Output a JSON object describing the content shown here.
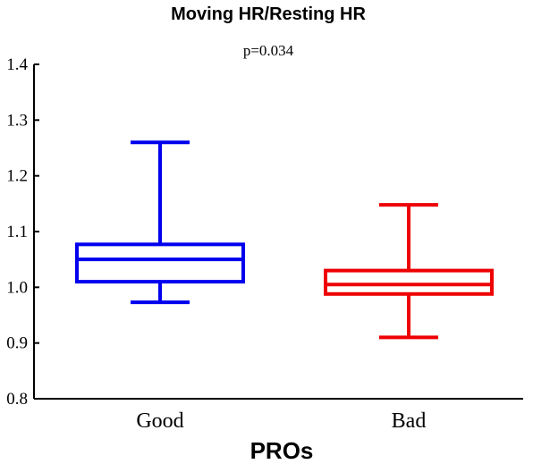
{
  "chart_data": {
    "type": "box",
    "title": "Moving HR/Resting HR",
    "subtitle": "p=0.034",
    "xlabel": "PROs",
    "ylabel": "",
    "ylim": [
      0.8,
      1.4
    ],
    "yticks": [
      "0.8",
      "0.9",
      "1.0",
      "1.1",
      "1.2",
      "1.3",
      "1.4"
    ],
    "grid": false,
    "categories": [
      "Good",
      "Bad"
    ],
    "boxes": [
      {
        "category": "Good",
        "min": 0.973,
        "q1": 1.01,
        "median": 1.05,
        "q3": 1.077,
        "max": 1.26,
        "color": "#0000ee"
      },
      {
        "category": "Bad",
        "min": 0.91,
        "q1": 0.988,
        "median": 1.005,
        "q3": 1.03,
        "max": 1.148,
        "color": "#ee0000"
      }
    ]
  }
}
